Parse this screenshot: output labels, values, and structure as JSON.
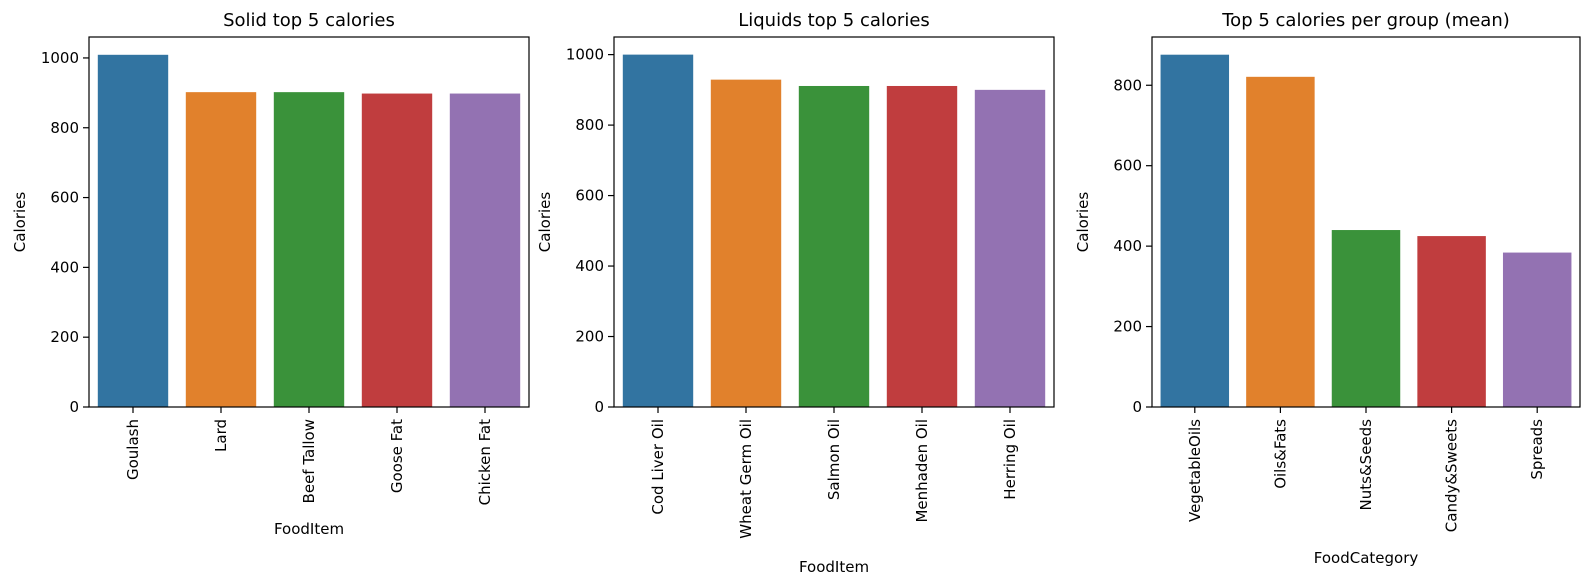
{
  "palette": [
    "#3274a1",
    "#e1812c",
    "#3a923a",
    "#c03d3e",
    "#9372b2"
  ],
  "chart_data": [
    {
      "type": "bar",
      "title": "Solid top 5 calories",
      "xlabel": "FoodItem",
      "ylabel": "Calories",
      "categories": [
        "Goulash",
        "Lard",
        "Beef Tallow",
        "Goose Fat",
        "Chicken Fat"
      ],
      "values": [
        1009,
        902,
        902,
        898,
        898
      ],
      "ylim": [
        0,
        1060
      ],
      "yticks": [
        0,
        200,
        400,
        600,
        800,
        1000
      ],
      "grid": false
    },
    {
      "type": "bar",
      "title": "Liquids top 5 calories",
      "xlabel": "FoodItem",
      "ylabel": "Calories",
      "categories": [
        "Cod Liver Oil",
        "Wheat Germ Oil",
        "Salmon Oil",
        "Menhaden Oil",
        "Herring Oil"
      ],
      "values": [
        1000,
        929,
        911,
        911,
        900
      ],
      "ylim": [
        0,
        1050
      ],
      "yticks": [
        0,
        200,
        400,
        600,
        800,
        1000
      ],
      "grid": false
    },
    {
      "type": "bar",
      "title": "Top 5 calories per group (mean)",
      "xlabel": "FoodCategory",
      "ylabel": "Calories",
      "categories": [
        "VegetableOils",
        "Oils&Fats",
        "Nuts&Seeds",
        "Candy&Sweets",
        "Spreads"
      ],
      "values": [
        876,
        821,
        440,
        425,
        384
      ],
      "ylim": [
        0,
        920
      ],
      "yticks": [
        0,
        200,
        400,
        600,
        800
      ],
      "grid": false
    }
  ]
}
